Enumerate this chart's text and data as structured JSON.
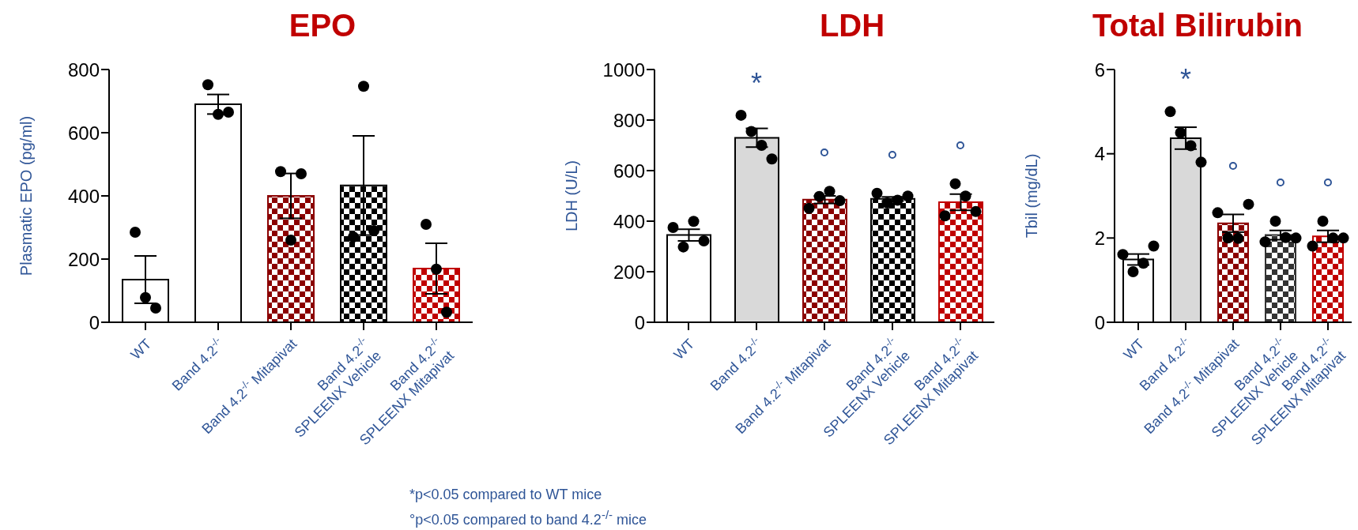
{
  "chart_data": [
    {
      "type": "bar",
      "title": "EPO",
      "ylabel": "Plasmatic EPO (pg/ml)",
      "categories": [
        "WT",
        "Band 4.2$^{-/-}$",
        "Band 4.2$^{-/-}$ Mitapivat",
        "Band 4.2$^{-/-}$\nSPLEENX Vehicle",
        "Band 4.2$^{-/-}$\nSPLEENX Mitapivat"
      ],
      "ylim": [
        0,
        800
      ],
      "yticks": [
        0,
        200,
        400,
        600,
        800
      ],
      "grid": false,
      "legend": false,
      "series": [
        {
          "type": "bar",
          "values": [
            135,
            690,
            400,
            433,
            170
          ],
          "errors": [
            75,
            31,
            71,
            157,
            80
          ],
          "colors": [
            "#ffffff",
            "#ffffff",
            "#8b0000",
            "#000000",
            "#c00000"
          ]
        },
        {
          "type": "scatter",
          "color": "#000000",
          "marker": "circle",
          "x": [
            "WT",
            "WT",
            "WT",
            "Band 4.2$^{-/-}$",
            "Band 4.2$^{-/-}$",
            "Band 4.2$^{-/-}$",
            "Band 4.2$^{-/-}$ Mitapivat",
            "Band 4.2$^{-/-}$ Mitapivat",
            "Band 4.2$^{-/-}$ Mitapivat",
            "Band 4.2$^{-/-}$\nSPLEENX Vehicle",
            "Band 4.2$^{-/-}$\nSPLEENX Vehicle",
            "Band 4.2$^{-/-}$\nSPLEENX Vehicle",
            "Band 4.2$^{-/-}$\nSPLEENX Mitapivat",
            "Band 4.2$^{-/-}$\nSPLEENX Mitapivat",
            "Band 4.2$^{-/-}$\nSPLEENX Mitapivat"
          ],
          "values": [
            285,
            78,
            45,
            752,
            658,
            665,
            477,
            260,
            470,
            270,
            747,
            290,
            310,
            168,
            32
          ]
        }
      ],
      "annotations": [
        "*p<0.05 compared to WT mice",
        "°p<0.05 compared to band 4.2$^{-/-}$ mice"
      ]
    },
    {
      "type": "bar",
      "title": "LDH",
      "ylabel": "LDH (U/L)",
      "categories": [
        "WT",
        "Band 4.2$^{-/-}$",
        "Band 4.2$^{-/-}$ Mitapivat",
        "Band 4.2$^{-/-}$\nSPLEENX Vehicle",
        "Band 4.2$^{-/-}$\nSPLEENX Mitapivat"
      ],
      "ylim": [
        0,
        1000
      ],
      "yticks": [
        0,
        200,
        400,
        600,
        800,
        1000
      ],
      "grid": false,
      "legend": false,
      "series": [
        {
          "type": "bar",
          "values": [
            345,
            730,
            485,
            488,
            475
          ],
          "errors": [
            23,
            37,
            15,
            8,
            32
          ],
          "colors": [
            "#ffffff",
            "#d9d9d9",
            "#8b0000",
            "#000000",
            "#c00000"
          ]
        },
        {
          "type": "scatter",
          "color": "#000000",
          "marker": "circle",
          "x": [
            "WT",
            "WT",
            "WT",
            "WT",
            "Band 4.2$^{-/-}$",
            "Band 4.2$^{-/-}$",
            "Band 4.2$^{-/-}$",
            "Band 4.2$^{-/-}$",
            "Band 4.2$^{-/-}$ Mitapivat",
            "Band 4.2$^{-/-}$ Mitapivat",
            "Band 4.2$^{-/-}$ Mitapivat",
            "Band 4.2$^{-/-}$ Mitapivat",
            "Band 4.2$^{-/-}$\nSPLEENX Vehicle",
            "Band 4.2$^{-/-}$\nSPLEENX Vehicle",
            "Band 4.2$^{-/-}$\nSPLEENX Vehicle",
            "Band 4.2$^{-/-}$\nSPLEENX Vehicle",
            "Band 4.2$^{-/-}$\nSPLEENX Mitapivat",
            "Band 4.2$^{-/-}$\nSPLEENX Mitapivat",
            "Band 4.2$^{-/-}$\nSPLEENX Mitapivat",
            "Band 4.2$^{-/-}$\nSPLEENX Mitapivat"
          ],
          "values": [
            375,
            298,
            399,
            322,
            819,
            755,
            700,
            646,
            451,
            498,
            518,
            481,
            510,
            472,
            483,
            499,
            421,
            548,
            499,
            438
          ]
        }
      ],
      "annotations": [
        "*",
        "°",
        "°",
        "°"
      ]
    },
    {
      "type": "bar",
      "title": "Total Bilirubin",
      "ylabel": "Tbil (mg/dL)",
      "categories": [
        "WT",
        "Band 4.2$^{-/-}$",
        "Band 4.2$^{-/-}$ Mitapivat",
        "Band 4.2$^{-/-}$\nSPLEENX Vehicle",
        "Band 4.2$^{-/-}$\nSPLEENX Mitapivat"
      ],
      "ylim": [
        0,
        6
      ],
      "yticks": [
        0,
        2,
        4,
        6
      ],
      "grid": false,
      "legend": false,
      "series": [
        {
          "type": "bar",
          "values": [
            1.49,
            4.37,
            2.35,
            2.07,
            2.04
          ],
          "errors": [
            0.13,
            0.26,
            0.21,
            0.11,
            0.14
          ],
          "colors": [
            "#ffffff",
            "#d9d9d9",
            "#8b0000",
            "#333333",
            "#c00000"
          ]
        },
        {
          "type": "scatter",
          "color": "#000000",
          "marker": "circle",
          "x": [
            "WT",
            "WT",
            "WT",
            "WT",
            "Band 4.2$^{-/-}$",
            "Band 4.2$^{-/-}$",
            "Band 4.2$^{-/-}$",
            "Band 4.2$^{-/-}$",
            "Band 4.2$^{-/-}$ Mitapivat",
            "Band 4.2$^{-/-}$ Mitapivat",
            "Band 4.2$^{-/-}$ Mitapivat",
            "Band 4.2$^{-/-}$ Mitapivat",
            "Band 4.2$^{-/-}$\nSPLEENX Vehicle",
            "Band 4.2$^{-/-}$\nSPLEENX Vehicle",
            "Band 4.2$^{-/-}$\nSPLEENX Vehicle",
            "Band 4.2$^{-/-}$\nSPLEENX Vehicle",
            "Band 4.2$^{-/-}$\nSPLEENX Mitapivat",
            "Band 4.2$^{-/-}$\nSPLEENX Mitapivat",
            "Band 4.2$^{-/-}$\nSPLEENX Mitapivat",
            "Band 4.2$^{-/-}$\nSPLEENX Mitapivat"
          ],
          "values": [
            1.61,
            1.2,
            1.4,
            1.81,
            5.0,
            4.5,
            4.19,
            3.8,
            2.6,
            2.0,
            1.99,
            2.8,
            1.91,
            2.4,
            2.01,
            2.0,
            1.81,
            2.4,
            2.0,
            2.0
          ]
        }
      ],
      "annotations": [
        "*",
        "°",
        "°",
        "°"
      ]
    }
  ]
}
